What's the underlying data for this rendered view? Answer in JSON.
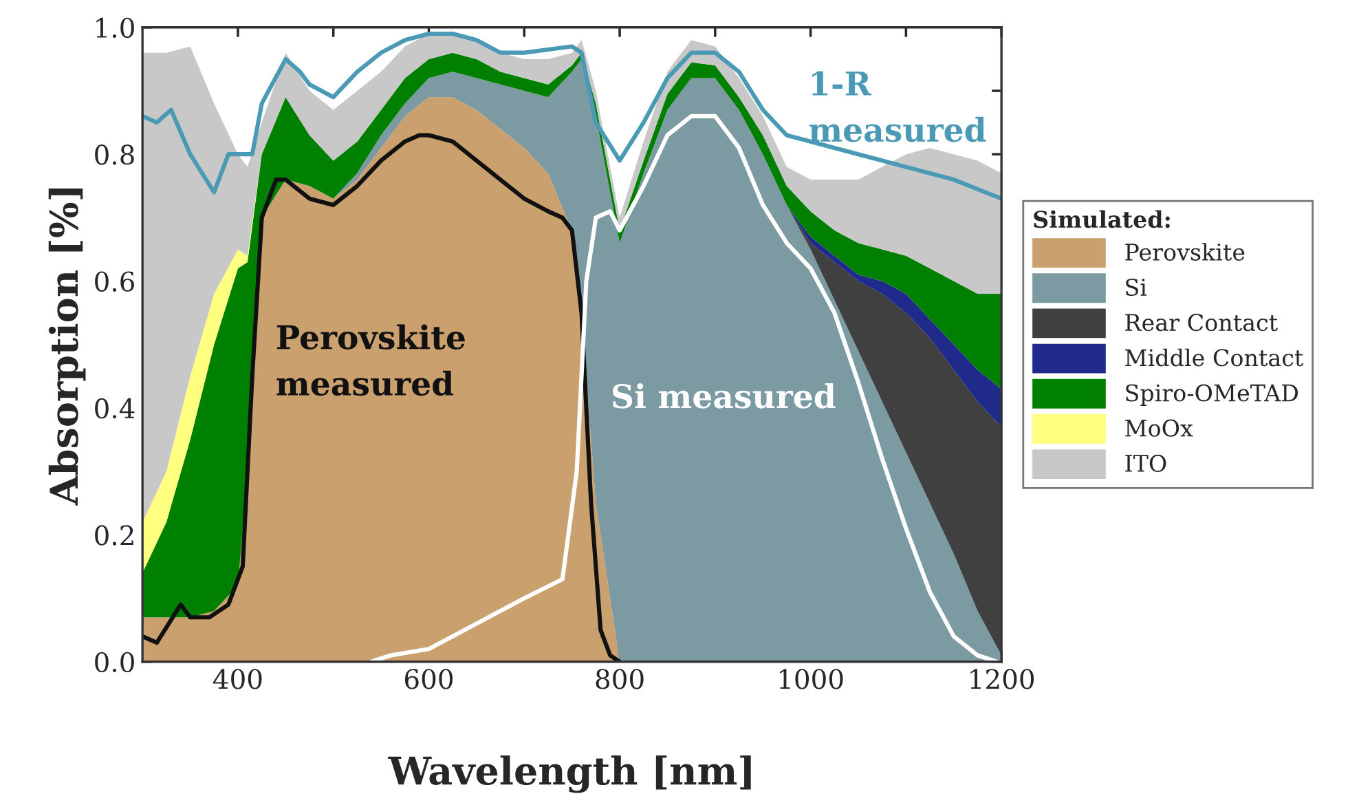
{
  "chart_data": {
    "type": "area",
    "stacked": true,
    "xlabel": "Wavelength [nm]",
    "ylabel": "Absorption [%]",
    "legend_title": "Simulated:",
    "legend": "right",
    "grid": false,
    "xlim": [
      300,
      1200
    ],
    "ylim": [
      0,
      1
    ],
    "xticks": [
      400,
      {
        "value": 500,
        "label": null
      },
      600,
      {
        "value": 700,
        "label": null
      },
      800,
      {
        "value": 900,
        "label": null
      },
      1000,
      {
        "value": 1100,
        "label": null
      },
      1200
    ],
    "yticks": [
      {
        "value": 0,
        "label": "0.0"
      },
      {
        "value": 0.1,
        "label": null
      },
      0.2,
      {
        "value": 0.3,
        "label": null
      },
      0.4,
      {
        "value": 0.5,
        "label": null
      },
      0.6,
      {
        "value": 0.7,
        "label": null
      },
      0.8,
      {
        "value": 0.9,
        "label": null
      },
      {
        "value": 1,
        "label": "1.0"
      }
    ],
    "x": [
      300,
      325,
      350,
      375,
      400,
      410,
      425,
      450,
      475,
      500,
      525,
      550,
      575,
      600,
      625,
      650,
      675,
      700,
      725,
      750,
      760,
      775,
      800,
      825,
      850,
      875,
      900,
      925,
      950,
      975,
      1000,
      1025,
      1050,
      1075,
      1100,
      1125,
      1150,
      1175,
      1200
    ],
    "series": [
      {
        "name": "Perovskite",
        "color": "#c9a06e",
        "values": [
          0.07,
          0.07,
          0.07,
          0.08,
          0.12,
          0.3,
          0.7,
          0.76,
          0.75,
          0.73,
          0.76,
          0.81,
          0.86,
          0.89,
          0.89,
          0.87,
          0.84,
          0.81,
          0.77,
          0.68,
          0.55,
          0.25,
          0,
          0,
          0,
          0,
          0,
          0,
          0,
          0,
          0,
          0,
          0,
          0,
          0,
          0,
          0,
          0,
          0
        ]
      },
      {
        "name": "Si",
        "color": "#7b9aa2",
        "values": [
          0,
          0,
          0,
          0,
          0,
          0,
          0,
          0,
          0,
          0,
          0.01,
          0.02,
          0.02,
          0.03,
          0.04,
          0.05,
          0.07,
          0.09,
          0.12,
          0.25,
          0.4,
          0.61,
          0.66,
          0.77,
          0.87,
          0.92,
          0.92,
          0.87,
          0.8,
          0.72,
          0.65,
          0.57,
          0.49,
          0.41,
          0.33,
          0.25,
          0.17,
          0.08,
          0.01
        ]
      },
      {
        "name": "Rear Contact",
        "color": "#404040",
        "values": [
          0,
          0,
          0,
          0,
          0,
          0,
          0,
          0,
          0,
          0,
          0,
          0,
          0,
          0,
          0,
          0,
          0,
          0,
          0,
          0,
          0,
          0,
          0,
          0,
          0,
          0,
          0,
          0,
          0,
          0,
          0.01,
          0.06,
          0.11,
          0.17,
          0.22,
          0.26,
          0.29,
          0.33,
          0.36
        ]
      },
      {
        "name": "Middle Contact",
        "color": "#1f2a8a",
        "values": [
          0,
          0,
          0,
          0,
          0,
          0,
          0,
          0,
          0,
          0,
          0,
          0,
          0,
          0,
          0,
          0,
          0,
          0,
          0,
          0,
          0,
          0,
          0,
          0,
          0,
          0,
          0,
          0,
          0,
          0,
          0.01,
          0.01,
          0.01,
          0.02,
          0.03,
          0.03,
          0.04,
          0.05,
          0.06
        ]
      },
      {
        "name": "Spiro-OMeTAD",
        "color": "#008000",
        "values": [
          0.07,
          0.15,
          0.28,
          0.42,
          0.5,
          0.33,
          0.1,
          0.13,
          0.08,
          0.06,
          0.05,
          0.04,
          0.04,
          0.03,
          0.03,
          0.03,
          0.02,
          0.02,
          0.02,
          0.01,
          0.01,
          0.02,
          0.02,
          0.02,
          0.025,
          0.025,
          0.02,
          0.02,
          0.03,
          0.03,
          0.04,
          0.04,
          0.05,
          0.05,
          0.06,
          0.08,
          0.1,
          0.12,
          0.15
        ]
      },
      {
        "name": "MoOx",
        "color": "#ffff80",
        "values": [
          0.08,
          0.08,
          0.1,
          0.08,
          0.03,
          0.01,
          0,
          0,
          0,
          0,
          0,
          0,
          0,
          0,
          0,
          0,
          0,
          0,
          0,
          0,
          0,
          0,
          0,
          0,
          0,
          0,
          0,
          0,
          0,
          0,
          0,
          0,
          0,
          0,
          0,
          0,
          0,
          0,
          0
        ]
      },
      {
        "name": "ITO",
        "color": "#c8c8c8",
        "values": [
          0.74,
          0.66,
          0.52,
          0.3,
          0.15,
          0.14,
          0.05,
          0.07,
          0.07,
          0.08,
          0.08,
          0.06,
          0.05,
          0.04,
          0.03,
          0.03,
          0.03,
          0.03,
          0.04,
          0.02,
          0.02,
          0.02,
          0.02,
          0.03,
          0.035,
          0.035,
          0.03,
          0.03,
          0.03,
          0.03,
          0.05,
          0.08,
          0.1,
          0.13,
          0.16,
          0.19,
          0.2,
          0.21,
          0.19
        ]
      },
      {
        "type": "line",
        "name": "Perovskite\nmeasured",
        "color": "#111111",
        "x": [
          300,
          315,
          340,
          350,
          370,
          390,
          405,
          415,
          425,
          440,
          450,
          475,
          500,
          525,
          550,
          575,
          590,
          600,
          625,
          650,
          675,
          700,
          725,
          740,
          750,
          760,
          770,
          780,
          790,
          800
        ],
        "values": [
          0.04,
          0.03,
          0.09,
          0.07,
          0.07,
          0.09,
          0.15,
          0.45,
          0.7,
          0.76,
          0.76,
          0.73,
          0.72,
          0.75,
          0.79,
          0.82,
          0.83,
          0.83,
          0.82,
          0.79,
          0.76,
          0.73,
          0.71,
          0.7,
          0.68,
          0.55,
          0.25,
          0.05,
          0.01,
          0.0
        ]
      },
      {
        "type": "line",
        "name": "Si measured",
        "color": "#ffffff",
        "x": [
          540,
          560,
          600,
          650,
          700,
          740,
          755,
          765,
          775,
          790,
          800,
          825,
          850,
          875,
          900,
          925,
          950,
          975,
          1000,
          1025,
          1050,
          1075,
          1100,
          1125,
          1150,
          1175,
          1195
        ],
        "values": [
          0.0,
          0.01,
          0.02,
          0.06,
          0.1,
          0.13,
          0.3,
          0.6,
          0.7,
          0.71,
          0.68,
          0.75,
          0.83,
          0.86,
          0.86,
          0.81,
          0.72,
          0.66,
          0.62,
          0.55,
          0.44,
          0.32,
          0.21,
          0.11,
          0.04,
          0.01,
          0.0
        ]
      },
      {
        "type": "line",
        "name": "1-R\nmeasured",
        "color": "#4a9ab5",
        "x": [
          300,
          315,
          330,
          350,
          375,
          390,
          400,
          415,
          425,
          450,
          465,
          475,
          500,
          525,
          550,
          575,
          600,
          625,
          650,
          675,
          700,
          725,
          750,
          760,
          775,
          800,
          825,
          850,
          875,
          900,
          925,
          950,
          975,
          1000,
          1050,
          1100,
          1150,
          1200
        ],
        "values": [
          0.86,
          0.85,
          0.87,
          0.8,
          0.74,
          0.8,
          0.8,
          0.8,
          0.88,
          0.95,
          0.93,
          0.91,
          0.89,
          0.93,
          0.96,
          0.98,
          0.99,
          0.99,
          0.98,
          0.96,
          0.96,
          0.965,
          0.97,
          0.96,
          0.85,
          0.79,
          0.85,
          0.92,
          0.96,
          0.96,
          0.93,
          0.87,
          0.83,
          0.82,
          0.8,
          0.78,
          0.76,
          0.73
        ]
      }
    ]
  }
}
